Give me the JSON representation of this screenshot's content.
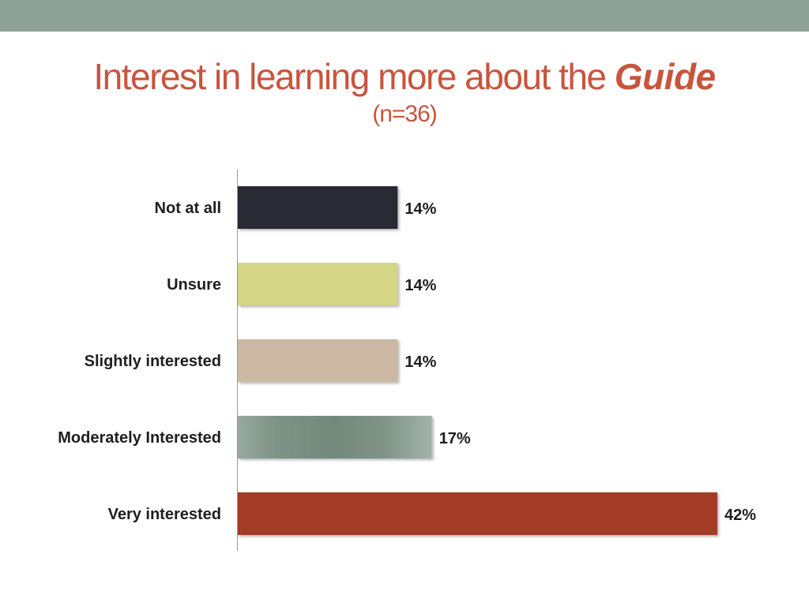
{
  "header": {
    "title": "Interest in learning more about the",
    "title_emphasis": "Guide",
    "subtitle": "(n=36)"
  },
  "colors": {
    "band": "#8fa29a",
    "title": "#c8553d"
  },
  "chart_data": {
    "type": "bar",
    "orientation": "horizontal",
    "title": "Interest in learning more about the Guide",
    "subtitle": "(n=36)",
    "categories": [
      "Not at all",
      "Unsure",
      "Slightly interested",
      "Moderately Interested",
      "Very interested"
    ],
    "values": [
      14,
      14,
      14,
      17,
      42
    ],
    "value_labels": [
      "14%",
      "14%",
      "14%",
      "17%",
      "42%"
    ],
    "unit": "%",
    "bar_colors": [
      "#2a2a35",
      "#d4d685",
      "#cdb9a3",
      "#7b8f82",
      "#a33a26"
    ],
    "xlim": [
      0,
      42
    ],
    "grid": false,
    "legend": "none"
  }
}
